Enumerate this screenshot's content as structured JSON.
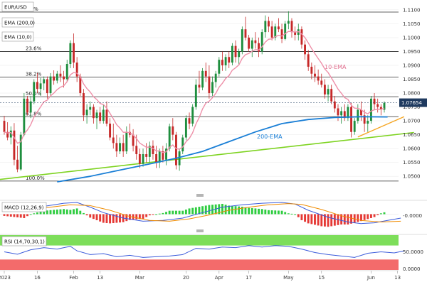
{
  "chart_data": {
    "type": "candlestick",
    "symbol_label": "EUR/USD",
    "indicator_labels": [
      "EMA (200,0)",
      "EMA (10,0)"
    ],
    "current_price": "1.07654",
    "series_labels": {
      "ema10": "10-EMA",
      "ema200": "200-EMA"
    },
    "price_axis": {
      "ticks": [
        "1.1100",
        "1.1050",
        "1.1000",
        "1.0950",
        "1.0900",
        "1.0850",
        "1.0800",
        "1.0750",
        "1.0700",
        "1.0650",
        "1.0600",
        "1.0550",
        "1.0500"
      ],
      "range": [
        1.0475,
        1.1115
      ]
    },
    "fib_levels": [
      {
        "label": "0.0%",
        "price": 1.1092
      },
      {
        "label": "23.6%",
        "price": 1.095
      },
      {
        "label": "38.2%",
        "price": 1.0858
      },
      {
        "label": "50.0%",
        "price": 1.0787
      },
      {
        "label": "61.8%",
        "price": 1.0715
      },
      {
        "label": "100.0%",
        "price": 1.0483
      }
    ],
    "x_axis_labels": [
      {
        "label": "2023",
        "idx": 0
      },
      {
        "label": "16",
        "idx": 10
      },
      {
        "label": "Feb",
        "idx": 21
      },
      {
        "label": "13",
        "idx": 29
      },
      {
        "label": "Mar",
        "idx": 41
      },
      {
        "label": "20",
        "idx": 55
      },
      {
        "label": "Apr",
        "idx": 65
      },
      {
        "label": "17",
        "idx": 74
      },
      {
        "label": "May",
        "idx": 86
      },
      {
        "label": "15",
        "idx": 96
      },
      {
        "label": "Jun",
        "idx": 111
      },
      {
        "label": "13",
        "idx": 119
      }
    ],
    "ohlc": [
      [
        1.07,
        1.0718,
        1.065,
        1.066
      ],
      [
        1.066,
        1.0695,
        1.063,
        1.064
      ],
      [
        1.064,
        1.068,
        1.0615,
        1.0665
      ],
      [
        1.0665,
        1.0692,
        1.054,
        1.056
      ],
      [
        1.056,
        1.061,
        1.0515,
        1.0525
      ],
      [
        1.0525,
        1.066,
        1.052,
        1.065
      ],
      [
        1.065,
        1.08,
        1.0645,
        1.078
      ],
      [
        1.078,
        1.079,
        1.072,
        1.073
      ],
      [
        1.073,
        1.079,
        1.071,
        1.077
      ],
      [
        1.077,
        1.085,
        1.076,
        1.084
      ],
      [
        1.084,
        1.0872,
        1.08,
        1.0815
      ],
      [
        1.0815,
        1.0855,
        1.079,
        1.0835
      ],
      [
        1.0835,
        1.086,
        1.081,
        1.085
      ],
      [
        1.085,
        1.086,
        1.078,
        1.08
      ],
      [
        1.08,
        1.0872,
        1.079,
        1.086
      ],
      [
        1.086,
        1.0882,
        1.083,
        1.0845
      ],
      [
        1.0845,
        1.088,
        1.0835,
        1.087
      ],
      [
        1.087,
        1.09,
        1.084,
        1.086
      ],
      [
        1.086,
        1.088,
        1.082,
        1.085
      ],
      [
        1.085,
        1.092,
        1.084,
        1.0905
      ],
      [
        1.0905,
        1.099,
        1.089,
        1.098
      ],
      [
        1.098,
        1.1015,
        1.089,
        1.091
      ],
      [
        1.091,
        1.093,
        1.084,
        1.086
      ],
      [
        1.086,
        1.087,
        1.079,
        1.08
      ],
      [
        1.08,
        1.0815,
        1.07,
        1.072
      ],
      [
        1.072,
        1.076,
        1.069,
        1.074
      ],
      [
        1.074,
        1.077,
        1.072,
        1.075
      ],
      [
        1.075,
        1.076,
        1.069,
        1.071
      ],
      [
        1.071,
        1.074,
        1.067,
        1.073
      ],
      [
        1.073,
        1.075,
        1.069,
        1.07
      ],
      [
        1.07,
        1.076,
        1.069,
        1.074
      ],
      [
        1.074,
        1.077,
        1.068,
        1.069
      ],
      [
        1.069,
        1.071,
        1.063,
        1.064
      ],
      [
        1.064,
        1.069,
        1.06,
        1.062
      ],
      [
        1.062,
        1.065,
        1.057,
        1.059
      ],
      [
        1.059,
        1.064,
        1.058,
        1.062
      ],
      [
        1.062,
        1.065,
        1.057,
        1.059
      ],
      [
        1.059,
        1.068,
        1.058,
        1.066
      ],
      [
        1.066,
        1.069,
        1.064,
        1.065
      ],
      [
        1.065,
        1.067,
        1.059,
        1.061
      ],
      [
        1.061,
        1.065,
        1.056,
        1.058
      ],
      [
        1.058,
        1.06,
        1.053,
        1.0545
      ],
      [
        1.0545,
        1.06,
        1.0535,
        1.058
      ],
      [
        1.058,
        1.062,
        1.055,
        1.057
      ],
      [
        1.057,
        1.0625,
        1.055,
        1.061
      ],
      [
        1.061,
        1.063,
        1.056,
        1.058
      ],
      [
        1.058,
        1.061,
        1.053,
        1.055
      ],
      [
        1.055,
        1.06,
        1.053,
        1.059
      ],
      [
        1.059,
        1.061,
        1.055,
        1.056
      ],
      [
        1.056,
        1.062,
        1.054,
        1.06
      ],
      [
        1.06,
        1.069,
        1.059,
        1.068
      ],
      [
        1.068,
        1.071,
        1.063,
        1.065
      ],
      [
        1.065,
        1.066,
        1.0525,
        1.054
      ],
      [
        1.054,
        1.06,
        1.052,
        1.059
      ],
      [
        1.059,
        1.065,
        1.058,
        1.064
      ],
      [
        1.064,
        1.072,
        1.063,
        1.071
      ],
      [
        1.071,
        1.073,
        1.067,
        1.069
      ],
      [
        1.069,
        1.076,
        1.068,
        1.075
      ],
      [
        1.075,
        1.085,
        1.074,
        1.083
      ],
      [
        1.083,
        1.088,
        1.08,
        1.082
      ],
      [
        1.082,
        1.089,
        1.081,
        1.088
      ],
      [
        1.088,
        1.091,
        1.084,
        1.086
      ],
      [
        1.086,
        1.09,
        1.078,
        1.08
      ],
      [
        1.08,
        1.086,
        1.079,
        1.084
      ],
      [
        1.084,
        1.088,
        1.082,
        1.087
      ],
      [
        1.087,
        1.093,
        1.086,
        1.092
      ],
      [
        1.092,
        1.095,
        1.088,
        1.09
      ],
      [
        1.09,
        1.094,
        1.088,
        1.093
      ],
      [
        1.093,
        1.095,
        1.089,
        1.091
      ],
      [
        1.091,
        1.098,
        1.09,
        1.097
      ],
      [
        1.097,
        1.099,
        1.091,
        1.093
      ],
      [
        1.093,
        1.096,
        1.09,
        1.095
      ],
      [
        1.095,
        1.104,
        1.094,
        1.103
      ],
      [
        1.103,
        1.1075,
        1.099,
        1.1
      ],
      [
        1.1,
        1.101,
        1.095,
        1.096
      ],
      [
        1.096,
        1.1,
        1.093,
        1.099
      ],
      [
        1.099,
        1.102,
        1.096,
        1.098
      ],
      [
        1.098,
        1.1,
        1.093,
        1.095
      ],
      [
        1.095,
        1.103,
        1.094,
        1.102
      ],
      [
        1.102,
        1.108,
        1.1,
        1.106
      ],
      [
        1.106,
        1.1075,
        1.102,
        1.104
      ],
      [
        1.104,
        1.106,
        1.099,
        1.1
      ],
      [
        1.1,
        1.105,
        1.099,
        1.104
      ],
      [
        1.104,
        1.107,
        1.102,
        1.103
      ],
      [
        1.103,
        1.105,
        1.098,
        1.0995
      ],
      [
        1.0995,
        1.106,
        1.099,
        1.105
      ],
      [
        1.105,
        1.1095,
        1.103,
        1.106
      ],
      [
        1.106,
        1.107,
        1.1,
        1.102
      ],
      [
        1.102,
        1.104,
        1.099,
        1.101
      ],
      [
        1.101,
        1.105,
        1.099,
        1.103
      ],
      [
        1.103,
        1.104,
        1.096,
        1.0975
      ],
      [
        1.0975,
        1.099,
        1.092,
        1.094
      ],
      [
        1.094,
        1.0955,
        1.088,
        1.0895
      ],
      [
        1.0895,
        1.091,
        1.085,
        1.087
      ],
      [
        1.087,
        1.09,
        1.084,
        1.086
      ],
      [
        1.086,
        1.0885,
        1.083,
        1.0845
      ],
      [
        1.0845,
        1.087,
        1.082,
        1.083
      ],
      [
        1.083,
        1.085,
        1.078,
        1.0795
      ],
      [
        1.0795,
        1.083,
        1.077,
        1.0815
      ],
      [
        1.0815,
        1.083,
        1.076,
        1.077
      ],
      [
        1.077,
        1.079,
        1.073,
        1.0745
      ],
      [
        1.0745,
        1.076,
        1.07,
        1.072
      ],
      [
        1.072,
        1.075,
        1.069,
        1.0735
      ],
      [
        1.0735,
        1.076,
        1.07,
        1.071
      ],
      [
        1.071,
        1.076,
        1.07,
        1.075
      ],
      [
        1.075,
        1.0765,
        1.064,
        1.066
      ],
      [
        1.066,
        1.071,
        1.065,
        1.07
      ],
      [
        1.07,
        1.076,
        1.069,
        1.074
      ],
      [
        1.074,
        1.077,
        1.07,
        1.072
      ],
      [
        1.072,
        1.074,
        1.066,
        1.069
      ],
      [
        1.069,
        1.072,
        1.066,
        1.07
      ],
      [
        1.07,
        1.079,
        1.069,
        1.078
      ],
      [
        1.078,
        1.08,
        1.074,
        1.076
      ],
      [
        1.076,
        1.078,
        1.073,
        1.075
      ],
      [
        1.075,
        1.076,
        1.072,
        1.074
      ],
      [
        1.074,
        1.077,
        1.073,
        1.0765
      ]
    ],
    "ema200_points": [
      [
        16,
        1.048
      ],
      [
        26,
        1.05
      ],
      [
        34,
        1.052
      ],
      [
        44,
        1.0545
      ],
      [
        52,
        1.0565
      ],
      [
        60,
        1.059
      ],
      [
        68,
        1.0625
      ],
      [
        76,
        1.066
      ],
      [
        84,
        1.069
      ],
      [
        92,
        1.0705
      ],
      [
        100,
        1.0712
      ],
      [
        108,
        1.0715
      ],
      [
        116,
        1.0714
      ]
    ],
    "trendline_long": [
      [
        -2,
        1.0488
      ],
      [
        124,
        1.0658
      ]
    ],
    "trendline_short": [
      [
        107,
        1.0642
      ],
      [
        121,
        1.0715
      ]
    ],
    "macd": {
      "label": "MACD (12,26,9)",
      "tick": "-0.0000",
      "macd_points": [
        [
          0,
          0.6
        ],
        [
          6,
          0.4
        ],
        [
          12,
          1.0
        ],
        [
          18,
          1.4
        ],
        [
          22,
          1.5
        ],
        [
          26,
          0.9
        ],
        [
          30,
          0.2
        ],
        [
          36,
          -0.5
        ],
        [
          42,
          -0.9
        ],
        [
          48,
          -0.8
        ],
        [
          54,
          -0.5
        ],
        [
          60,
          0.2
        ],
        [
          66,
          0.9
        ],
        [
          72,
          1.2
        ],
        [
          78,
          1.4
        ],
        [
          84,
          1.5
        ],
        [
          88,
          1.3
        ],
        [
          92,
          0.5
        ],
        [
          98,
          -0.4
        ],
        [
          104,
          -1.0
        ],
        [
          108,
          -1.2
        ],
        [
          112,
          -1.1
        ],
        [
          116,
          -0.8
        ],
        [
          120,
          -0.5
        ]
      ],
      "signal_points": [
        [
          0,
          0.7
        ],
        [
          8,
          0.6
        ],
        [
          14,
          0.9
        ],
        [
          20,
          1.2
        ],
        [
          26,
          1.1
        ],
        [
          32,
          0.5
        ],
        [
          38,
          -0.3
        ],
        [
          44,
          -0.8
        ],
        [
          50,
          -0.9
        ],
        [
          56,
          -0.6
        ],
        [
          62,
          -0.1
        ],
        [
          68,
          0.5
        ],
        [
          74,
          0.9
        ],
        [
          80,
          1.2
        ],
        [
          86,
          1.35
        ],
        [
          90,
          1.25
        ],
        [
          96,
          0.6
        ],
        [
          102,
          -0.2
        ],
        [
          108,
          -0.8
        ],
        [
          114,
          -1.0
        ],
        [
          120,
          -0.9
        ]
      ]
    },
    "rsi": {
      "label": "RSI (14,70,30,1)",
      "ticks": [
        "50.0000",
        "0.0000"
      ],
      "overbought": 70,
      "oversold": 30,
      "points": [
        [
          0,
          52
        ],
        [
          4,
          45
        ],
        [
          8,
          58
        ],
        [
          12,
          64
        ],
        [
          16,
          60
        ],
        [
          20,
          68
        ],
        [
          22,
          55
        ],
        [
          26,
          44
        ],
        [
          30,
          47
        ],
        [
          34,
          38
        ],
        [
          38,
          42
        ],
        [
          42,
          36
        ],
        [
          46,
          38
        ],
        [
          50,
          40
        ],
        [
          54,
          44
        ],
        [
          58,
          62
        ],
        [
          62,
          60
        ],
        [
          66,
          66
        ],
        [
          70,
          64
        ],
        [
          74,
          70
        ],
        [
          78,
          66
        ],
        [
          82,
          70
        ],
        [
          86,
          68
        ],
        [
          90,
          60
        ],
        [
          94,
          50
        ],
        [
          98,
          44
        ],
        [
          102,
          40
        ],
        [
          106,
          36
        ],
        [
          110,
          48
        ],
        [
          114,
          52
        ],
        [
          118,
          49
        ],
        [
          121,
          55
        ]
      ]
    }
  }
}
